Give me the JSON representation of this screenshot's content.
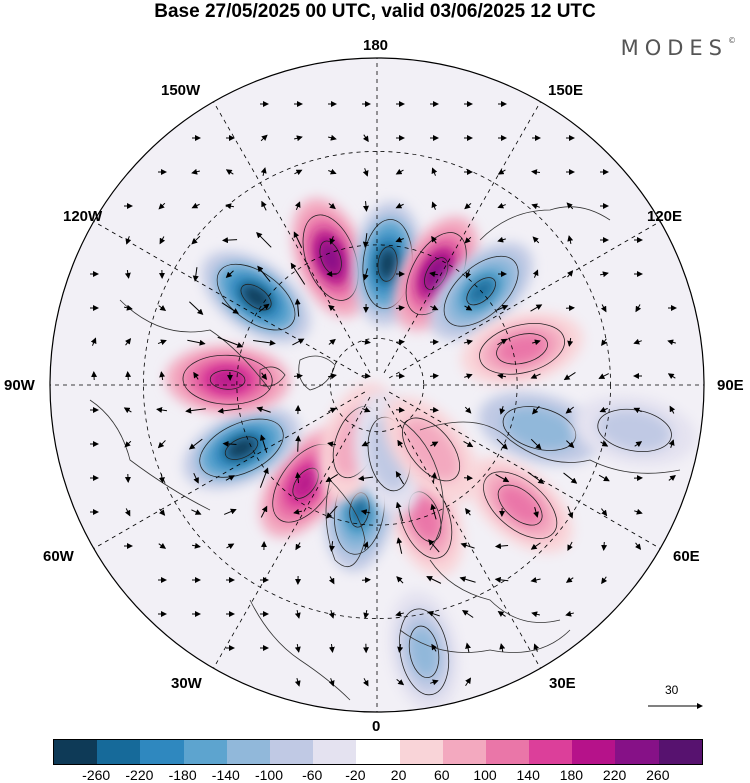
{
  "title": "Base 27/05/2025 00 UTC, valid 03/06/2025 12 UTC",
  "brand": "MODES",
  "brand_mark": "©",
  "labels": {
    "top": "180",
    "bottom": "0",
    "left": "90W",
    "right": "90E",
    "nw1": "150W",
    "nw2": "120W",
    "ne1": "150E",
    "ne2": "120E",
    "sw1": "60W",
    "sw2": "30W",
    "se1": "60E",
    "se2": "30E"
  },
  "vector_scale": "30",
  "colorbar": {
    "ticks": [
      "-260",
      "-220",
      "-180",
      "-140",
      "-100",
      "-60",
      "-20",
      "20",
      "60",
      "100",
      "140",
      "180",
      "220",
      "260"
    ],
    "colors": [
      "#0e3a57",
      "#166a9a",
      "#2f88bf",
      "#5da4cf",
      "#91b8da",
      "#c0c9e4",
      "#e4e2f0",
      "#ffffff",
      "#f9d4d8",
      "#f3a9bf",
      "#ea76a8",
      "#dc3f9a",
      "#b6128a",
      "#861187",
      "#57126f"
    ]
  },
  "anomalies": [
    {
      "lon": -160,
      "colat": 29,
      "value": 240
    },
    {
      "lon": 175,
      "colat": 26,
      "value": -260
    },
    {
      "lon": 152,
      "colat": 27,
      "value": 240
    },
    {
      "lon": 132,
      "colat": 30,
      "value": -220
    },
    {
      "lon": 104,
      "colat": 32,
      "value": 140
    },
    {
      "lon": 75,
      "colat": 36,
      "value": -100
    },
    {
      "lon": 50,
      "colat": 40,
      "value": 140
    },
    {
      "lon": 20,
      "colat": 30,
      "value": 120
    },
    {
      "lon": -8,
      "colat": 27,
      "value": -220
    },
    {
      "lon": -36,
      "colat": 26,
      "value": 200
    },
    {
      "lon": -65,
      "colat": 32,
      "value": -260
    },
    {
      "lon": -92,
      "colat": 32,
      "value": 220
    },
    {
      "lon": -126,
      "colat": 32,
      "value": -260
    },
    {
      "lon": -20,
      "colat": 13,
      "value": 100
    },
    {
      "lon": 10,
      "colat": 15,
      "value": -60
    },
    {
      "lon": 40,
      "colat": 18,
      "value": 80
    },
    {
      "lon": 80,
      "colat": 56,
      "value": -80
    },
    {
      "lon": 10,
      "colat": 58,
      "value": -120
    }
  ]
}
